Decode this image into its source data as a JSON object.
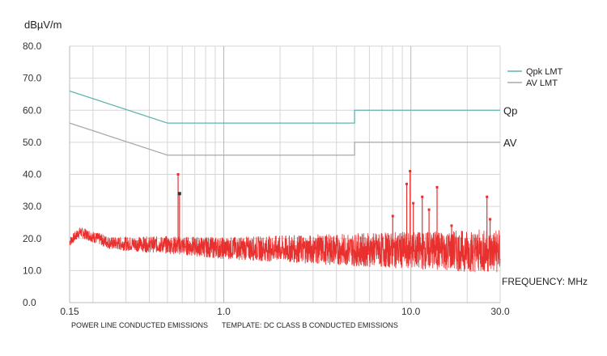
{
  "chart_data": {
    "type": "line",
    "ylabel": "dBµV/m",
    "xlabel": "FREQUENCY: MHz",
    "x_scale": "log",
    "xlim": [
      0.15,
      30.0
    ],
    "ylim": [
      0.0,
      80.0
    ],
    "grid": true,
    "legend_position": "top-right",
    "y_ticks": [
      "0.0",
      "10.0",
      "20.0",
      "30.0",
      "40.0",
      "50.0",
      "60.0",
      "70.0",
      "80.0"
    ],
    "x_tick_labels": [
      {
        "value": 0.15,
        "label": "0.15"
      },
      {
        "value": 1.0,
        "label": "1.0"
      },
      {
        "value": 10.0,
        "label": "10.0"
      },
      {
        "value": 30.0,
        "label": "30.0"
      }
    ],
    "series": [
      {
        "name": "Qpk LMT",
        "color": "#5fb5b0",
        "x": [
          0.15,
          0.5,
          0.5,
          5.0,
          5.0,
          30.0
        ],
        "y": [
          66.0,
          56.0,
          56.0,
          56.0,
          60.0,
          60.0
        ]
      },
      {
        "name": "AV LMT",
        "color": "#aaaaaa",
        "x": [
          0.15,
          0.5,
          0.5,
          5.0,
          5.0,
          30.0
        ],
        "y": [
          56.0,
          46.0,
          46.0,
          46.0,
          50.0,
          50.0
        ]
      }
    ],
    "measurement": {
      "color": "#e8302e",
      "noise_floor": [
        {
          "x": 0.15,
          "y": 19.0
        },
        {
          "x": 0.17,
          "y": 22.0
        },
        {
          "x": 0.25,
          "y": 18.5
        },
        {
          "x": 0.5,
          "y": 18.0
        },
        {
          "x": 1.0,
          "y": 17.0
        },
        {
          "x": 5.0,
          "y": 16.5
        },
        {
          "x": 30.0,
          "y": 16.0
        }
      ],
      "spikes": [
        {
          "x": 0.57,
          "y": 40.0
        },
        {
          "x": 0.58,
          "y": 34.0
        },
        {
          "x": 9.5,
          "y": 37.0
        },
        {
          "x": 9.9,
          "y": 41.0
        },
        {
          "x": 10.3,
          "y": 31.0
        },
        {
          "x": 11.5,
          "y": 33.0
        },
        {
          "x": 12.5,
          "y": 29.0
        },
        {
          "x": 13.8,
          "y": 36.0
        },
        {
          "x": 16.5,
          "y": 24.0
        },
        {
          "x": 25.5,
          "y": 33.0
        },
        {
          "x": 26.5,
          "y": 26.0
        },
        {
          "x": 8.0,
          "y": 27.0
        }
      ]
    },
    "right_labels": [
      {
        "text": "Qp",
        "y": 60.0
      },
      {
        "text": "AV",
        "y": 50.0
      }
    ],
    "footer": {
      "left": "POWER LINE CONDUCTED EMISSIONS",
      "right": "TEMPLATE: DC CLASS B CONDUCTED EMISSIONS"
    }
  }
}
